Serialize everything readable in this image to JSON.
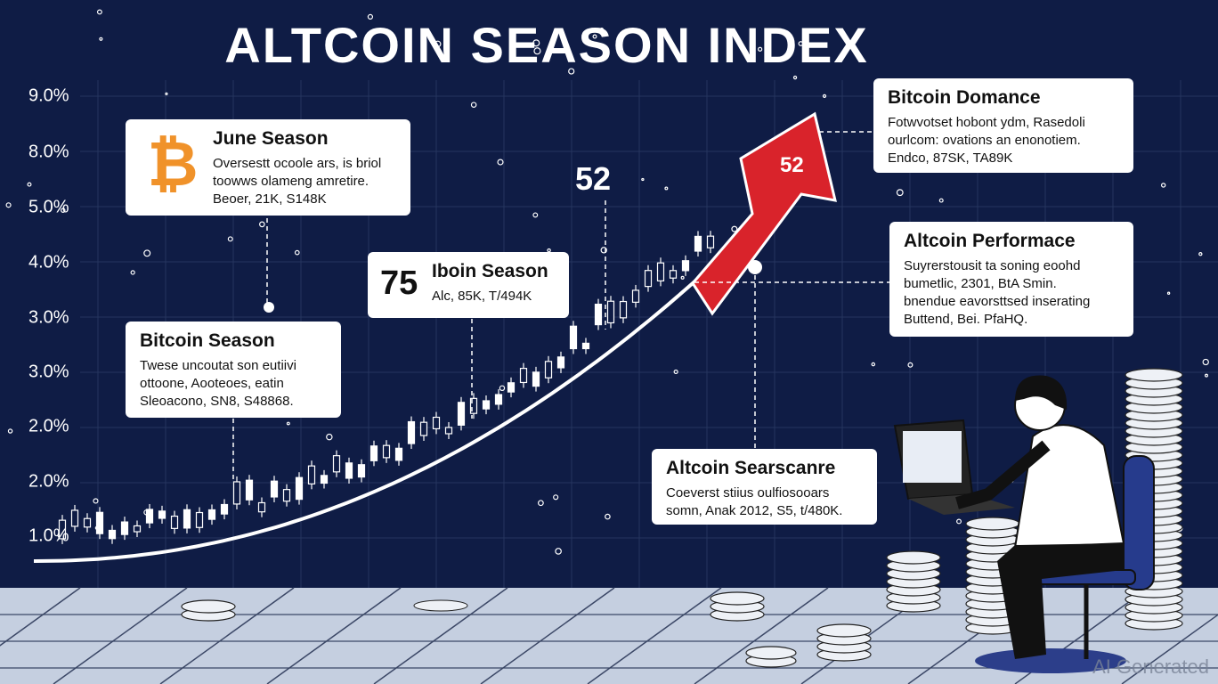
{
  "title": "ALTCOIN SEASON INDEX",
  "y_axis_labels": [
    "9.0%",
    "8.0%",
    "5.0%",
    "4.0%",
    "3.0%",
    "3.0%",
    "2.0%",
    "2.0%",
    "1.0%"
  ],
  "callouts": [
    {
      "title": "June Season",
      "lines": [
        "Oversestt ocoole ars, is briol",
        "toowws olameng amretire.",
        "Beoer, 21K, S148K"
      ]
    },
    {
      "title": "Bitcoin Season",
      "lines": [
        "Twese uncoutat son eutiivi",
        "ottoone, Aooteoes, eatin",
        "Sleoacono, SN8, S48868."
      ]
    },
    {
      "number": "75",
      "title": "Iboin Season",
      "lines": [
        "Alc, 85K, T/494K"
      ]
    },
    {
      "title": "Bitcoin Domance",
      "lines": [
        "Fotwvotset hobont ydm, Rasedoli",
        "ourlcom: ovations an enonotiem.",
        "Endco, 87SK, TA89K"
      ]
    },
    {
      "title": "Altcoin Performace",
      "lines": [
        "Suyrerstousit ta soning eoohd",
        "bumetlic, 2301, BtA Smin.",
        "bnendue eavorsttsed inserating",
        "Buttend, Bei. PfaHQ."
      ]
    },
    {
      "title": "Altcoin Searscanre",
      "lines": [
        "Coeverst stiius oulfiosooars",
        "somn, Anak 2012, S5, t/480K."
      ]
    }
  ],
  "peak_label": "52",
  "arrow_label": "52",
  "watermark": "AI Generated"
}
